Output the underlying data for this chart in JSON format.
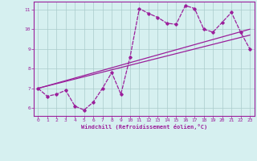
{
  "x": [
    0,
    1,
    2,
    3,
    4,
    5,
    6,
    7,
    8,
    9,
    10,
    11,
    12,
    13,
    14,
    15,
    16,
    17,
    18,
    19,
    20,
    21,
    22,
    23
  ],
  "y_main": [
    7.0,
    6.6,
    6.7,
    6.9,
    6.1,
    5.9,
    6.3,
    7.0,
    7.8,
    6.7,
    8.6,
    11.05,
    10.8,
    10.6,
    10.3,
    10.25,
    11.2,
    11.05,
    10.0,
    9.85,
    10.35,
    10.85,
    9.85,
    9.0
  ],
  "line_color": "#9B1F9B",
  "bg_color": "#D6F0F0",
  "grid_color": "#AACCCC",
  "xlabel": "Windchill (Refroidissement éolien,°C)",
  "ylim": [
    5.6,
    11.4
  ],
  "xlim": [
    -0.5,
    23.5
  ],
  "yticks": [
    6,
    7,
    8,
    9,
    10,
    11
  ],
  "xticks": [
    0,
    1,
    2,
    3,
    4,
    5,
    6,
    7,
    8,
    9,
    10,
    11,
    12,
    13,
    14,
    15,
    16,
    17,
    18,
    19,
    20,
    21,
    22,
    23
  ],
  "reg_x0": 0,
  "reg_x1": 23,
  "reg1_y0": 7.0,
  "reg1_y1": 10.0,
  "reg2_y0": 7.0,
  "reg2_y1": 9.7
}
